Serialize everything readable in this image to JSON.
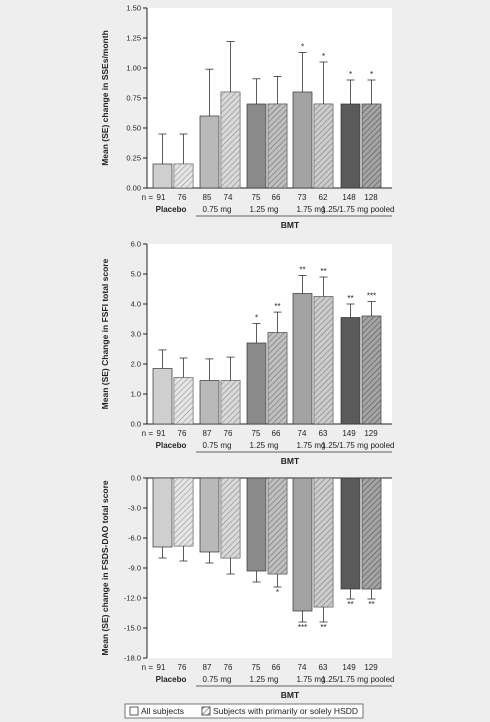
{
  "colors": {
    "background": "#eeeeee",
    "placebo": "#cfcfcf",
    "dose_0_75": "#b9b9b9",
    "dose_1_25": "#8a8a8a",
    "dose_1_75": "#a3a3a3",
    "pooled": "#5a5a5a",
    "hatch_line": "#444444"
  },
  "legend": {
    "all_subjects": "All subjects",
    "hsdd_subjects": "Subjects with primarily or solely HSDD"
  },
  "chart_data": [
    {
      "type": "bar",
      "ylabel": "Mean (SE) change in SSEs/month",
      "ylim": [
        0,
        1.5
      ],
      "yticks": [
        "0.00",
        "0.25",
        "0.50",
        "0.75",
        "1.00",
        "1.25",
        "1.50"
      ],
      "n_prefix": "n = ",
      "n_values": [
        "91",
        "76",
        "85",
        "74",
        "75",
        "66",
        "73",
        "62",
        "148",
        "128"
      ],
      "group_labels": [
        "Placebo",
        "0.75 mg",
        "1.25 mg",
        "1.75 mg",
        "1.25/1.75 mg pooled"
      ],
      "bmt_label": "BMT",
      "series": [
        {
          "name": "All subjects",
          "values": [
            0.2,
            0.6,
            0.7,
            0.8,
            0.7
          ],
          "se": [
            0.25,
            0.39,
            0.21,
            0.33,
            0.2
          ],
          "stars": [
            "",
            "",
            "",
            "*",
            "*"
          ]
        },
        {
          "name": "Subjects with primarily or solely HSDD",
          "values": [
            0.2,
            0.8,
            0.7,
            0.7,
            0.7
          ],
          "se": [
            0.25,
            0.42,
            0.23,
            0.35,
            0.2
          ],
          "stars": [
            "",
            "",
            "",
            "*",
            "*"
          ]
        }
      ]
    },
    {
      "type": "bar",
      "ylabel": "Mean (SE) Change in FSFI total score",
      "ylim": [
        0,
        6
      ],
      "yticks": [
        "0.0",
        "1.0",
        "2.0",
        "3.0",
        "4.0",
        "5.0",
        "6.0"
      ],
      "n_prefix": "n = ",
      "n_values": [
        "91",
        "76",
        "87",
        "76",
        "75",
        "66",
        "74",
        "63",
        "149",
        "129"
      ],
      "group_labels": [
        "Placebo",
        "0.75 mg",
        "1.25 mg",
        "1.75 mg",
        "1.25/1.75 mg pooled"
      ],
      "bmt_label": "BMT",
      "series": [
        {
          "name": "All subjects",
          "values": [
            1.85,
            1.45,
            2.7,
            4.35,
            3.55
          ],
          "se": [
            0.62,
            0.72,
            0.65,
            0.6,
            0.45
          ],
          "stars": [
            "",
            "",
            "*",
            "**",
            "**"
          ]
        },
        {
          "name": "Subjects with primarily or solely HSDD",
          "values": [
            1.55,
            1.45,
            3.05,
            4.25,
            3.6
          ],
          "se": [
            0.65,
            0.78,
            0.68,
            0.65,
            0.48
          ],
          "stars": [
            "",
            "",
            "**",
            "**",
            "***"
          ]
        }
      ]
    },
    {
      "type": "bar",
      "ylabel": "Mean (SE) change in FSDS-DAO total score",
      "ylim": [
        -18,
        0
      ],
      "yticks": [
        "0.0",
        "-3.0",
        "-6.0",
        "-9.0",
        "-12.0",
        "-15.0",
        "-18.0"
      ],
      "n_prefix": "n = ",
      "n_values": [
        "91",
        "76",
        "87",
        "76",
        "75",
        "66",
        "74",
        "63",
        "149",
        "129"
      ],
      "group_labels": [
        "Placebo",
        "0.75 mg",
        "1.25 mg",
        "1.75 mg",
        "1.25/1.75 mg pooled"
      ],
      "bmt_label": "BMT",
      "series": [
        {
          "name": "All subjects",
          "values": [
            -6.9,
            -7.4,
            -9.3,
            -13.3,
            -11.1
          ],
          "se": [
            1.1,
            1.1,
            1.1,
            1.1,
            1.0
          ],
          "stars": [
            "",
            "",
            "",
            "***",
            "**"
          ]
        },
        {
          "name": "Subjects with primarily or solely HSDD",
          "values": [
            -6.8,
            -8.0,
            -9.6,
            -12.9,
            -11.1
          ],
          "se": [
            1.5,
            1.6,
            1.3,
            1.5,
            1.0
          ],
          "stars": [
            "",
            "",
            "*",
            "**",
            "**"
          ]
        }
      ]
    }
  ]
}
